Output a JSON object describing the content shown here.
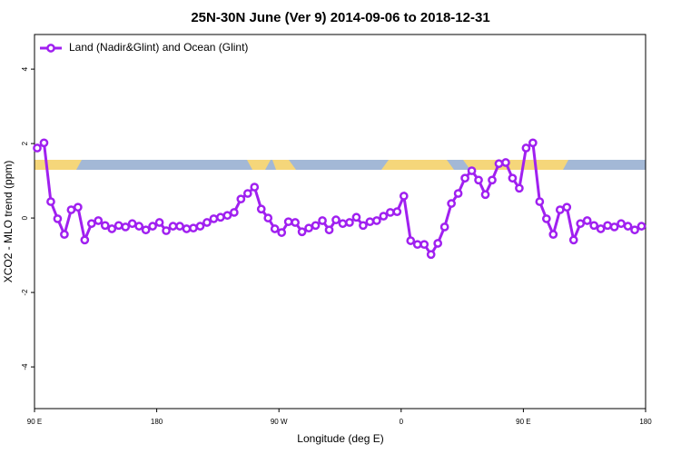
{
  "chart_data": {
    "type": "line",
    "title": "25N-30N June (Ver 9)   2014-09-06 to 2018-12-31",
    "x_label": "Longitude (deg E)",
    "y_label": "XCO2 - MLO trend (ppm)",
    "xlim": [
      90,
      540
    ],
    "ylim": [
      -5.12,
      4.93
    ],
    "xticks": [
      {
        "value": 90,
        "label": "90 E"
      },
      {
        "value": 180,
        "label": "180"
      },
      {
        "value": 270,
        "label": "90 W"
      },
      {
        "value": 360,
        "label": "0"
      },
      {
        "value": 450,
        "label": "90 E"
      },
      {
        "value": 540,
        "label": "180"
      }
    ],
    "yticks": [
      4,
      2,
      0,
      -2,
      -4
    ],
    "legend": "top-left",
    "x": [
      92,
      97,
      102,
      107,
      112,
      117,
      122,
      127,
      132,
      137,
      142,
      147,
      152,
      157,
      162,
      167,
      172,
      177,
      182,
      187,
      192,
      197,
      202,
      207,
      212,
      217,
      222,
      227,
      232,
      237,
      242,
      247,
      252,
      257,
      262,
      267,
      272,
      277,
      282,
      287,
      292,
      297,
      302,
      307,
      312,
      317,
      322,
      327,
      332,
      337,
      342,
      347,
      352,
      357,
      362,
      367,
      372,
      377,
      382,
      387,
      392,
      397,
      402,
      407,
      412,
      417,
      422,
      427,
      432,
      437,
      442,
      447,
      452,
      457,
      462,
      467,
      472,
      477,
      482,
      487,
      492,
      497,
      502,
      507,
      512,
      517,
      522,
      527,
      532,
      537
    ],
    "series": [
      {
        "name": "Land (Nadir&Glint) and Ocean (Glint)",
        "color": "#a020f0",
        "values": [
          1.88,
          2.02,
          0.44,
          -0.02,
          -0.44,
          0.22,
          0.29,
          -0.59,
          -0.15,
          -0.07,
          -0.2,
          -0.29,
          -0.2,
          -0.24,
          -0.15,
          -0.22,
          -0.32,
          -0.22,
          -0.12,
          -0.34,
          -0.22,
          -0.22,
          -0.29,
          -0.27,
          -0.22,
          -0.12,
          -0.02,
          0.02,
          0.07,
          0.15,
          0.51,
          0.66,
          0.83,
          0.24,
          0.0,
          -0.29,
          -0.39,
          -0.1,
          -0.12,
          -0.37,
          -0.27,
          -0.2,
          -0.07,
          -0.32,
          -0.05,
          -0.15,
          -0.12,
          0.02,
          -0.2,
          -0.1,
          -0.07,
          0.05,
          0.15,
          0.17,
          0.59,
          -0.61,
          -0.71,
          -0.71,
          -0.98,
          -0.68,
          -0.24,
          0.39,
          0.66,
          1.07,
          1.27,
          1.02,
          0.63,
          1.02,
          1.46,
          1.49,
          1.07,
          0.8,
          1.88,
          2.02,
          0.44,
          -0.02,
          -0.44,
          0.22,
          0.29,
          -0.59,
          -0.15,
          -0.07,
          -0.2,
          -0.29,
          -0.2,
          -0.24,
          -0.15,
          -0.22,
          -0.32,
          -0.22
        ]
      }
    ]
  }
}
